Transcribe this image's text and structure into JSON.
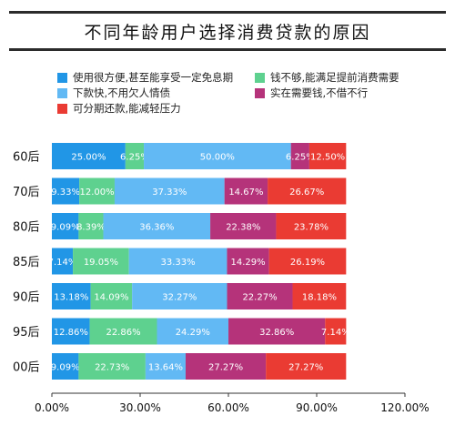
{
  "chart_data": {
    "type": "bar",
    "orientation": "horizontal",
    "stacked": true,
    "title": "不同年龄用户选择消费贷款的原因",
    "categories": [
      "60后",
      "70后",
      "80后",
      "85后",
      "90后",
      "95后",
      "00后"
    ],
    "series": [
      {
        "name": "使用很方便,甚至能享受一定免息期",
        "color": "#2196e6",
        "values": [
          25.0,
          9.33,
          9.09,
          7.14,
          13.18,
          12.86,
          9.09
        ],
        "labels": [
          "25.00%",
          "9.33%",
          "9.09%",
          "7.14%",
          "13.18%",
          "12.86%",
          "9.09%"
        ]
      },
      {
        "name": "钱不够,能满足提前消费需要",
        "color": "#5ed18f",
        "values": [
          6.25,
          12.0,
          8.39,
          19.05,
          14.09,
          22.86,
          22.73
        ],
        "labels": [
          "6.25%",
          "12.00%",
          "8.39%",
          "19.05%",
          "14.09%",
          "22.86%",
          "22.73%"
        ]
      },
      {
        "name": "下款快,不用欠人情债",
        "color": "#62b9f4",
        "values": [
          50.0,
          37.33,
          36.36,
          33.33,
          32.27,
          24.29,
          13.64
        ],
        "labels": [
          "50.00%",
          "37.33%",
          "36.36%",
          "33.33%",
          "32.27%",
          "24.29%",
          "13.64%"
        ]
      },
      {
        "name": "实在需要钱,不借不行",
        "color": "#b5337a",
        "values": [
          6.25,
          14.67,
          22.38,
          14.29,
          22.27,
          32.86,
          27.27
        ],
        "labels": [
          "6.25%",
          "14.67%",
          "22.38%",
          "14.29%",
          "22.27%",
          "32.86%",
          "27.27%"
        ]
      },
      {
        "name": "可分期还款,能减轻压力",
        "color": "#ea3b33",
        "values": [
          12.5,
          26.67,
          23.78,
          26.19,
          18.18,
          7.14,
          27.27
        ],
        "labels": [
          "12.50%",
          "26.67%",
          "23.78%",
          "26.19%",
          "18.18%",
          "7.14%",
          "27.27%"
        ]
      }
    ],
    "xlim": [
      0,
      120
    ],
    "xticks": [
      0,
      30,
      60,
      90,
      120
    ],
    "xtick_labels": [
      "0.00%",
      "30.00%",
      "60.00%",
      "90.00%",
      "120.00%"
    ],
    "grid": false,
    "legend_position": "top"
  }
}
